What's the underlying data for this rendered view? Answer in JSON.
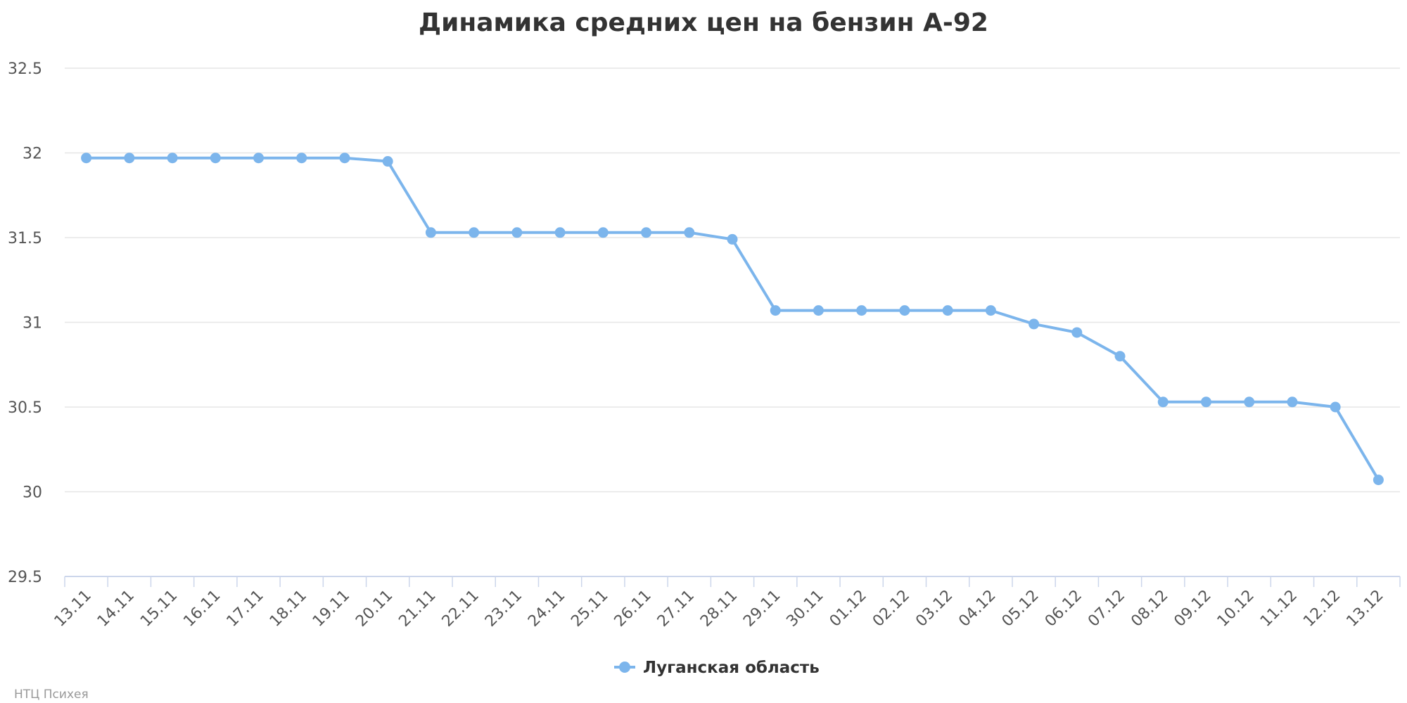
{
  "chart_data": {
    "type": "line",
    "title": "Динамика средних цен на бензин А-92",
    "xlabel": "",
    "ylabel": "",
    "ylim": [
      29.5,
      32.5
    ],
    "y_ticks": [
      "29.5",
      "30",
      "30.5",
      "31",
      "31.5",
      "32",
      "32.5"
    ],
    "grid": true,
    "legend_position": "bottom-center",
    "categories": [
      "13.11",
      "14.11",
      "15.11",
      "16.11",
      "17.11",
      "18.11",
      "19.11",
      "20.11",
      "21.11",
      "22.11",
      "23.11",
      "24.11",
      "25.11",
      "26.11",
      "27.11",
      "28.11",
      "29.11",
      "30.11",
      "01.12",
      "02.12",
      "03.12",
      "04.12",
      "05.12",
      "06.12",
      "07.12",
      "08.12",
      "09.12",
      "10.12",
      "11.12",
      "12.12",
      "13.12"
    ],
    "series": [
      {
        "name": "Луганская область",
        "color": "#7cb5ec",
        "values": [
          31.97,
          31.97,
          31.97,
          31.97,
          31.97,
          31.97,
          31.97,
          31.95,
          31.53,
          31.53,
          31.53,
          31.53,
          31.53,
          31.53,
          31.53,
          31.49,
          31.07,
          31.07,
          31.07,
          31.07,
          31.07,
          31.07,
          30.99,
          30.94,
          30.8,
          30.53,
          30.53,
          30.53,
          30.53,
          30.5,
          30.07
        ]
      }
    ]
  },
  "credit": "НТЦ Психея"
}
